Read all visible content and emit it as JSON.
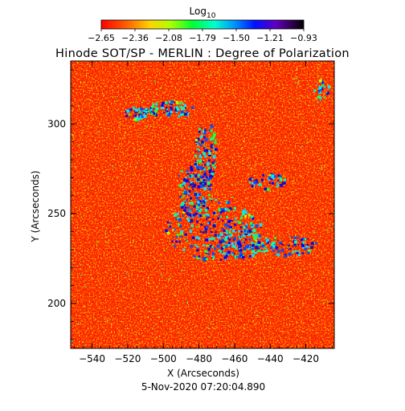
{
  "chart_data": {
    "type": "heatmap",
    "title": "Hinode SOT/SP - MERLIN : Degree of Polarization",
    "xlabel": "X (Arcseconds)",
    "ylabel": "Y (Arcseconds)",
    "footer_timestamp": "5-Nov-2020 07:20:04.890",
    "colorbar": {
      "label_base": "Log",
      "label_sub": "10",
      "ticks": [
        "-2.65",
        "-2.36",
        "-2.08",
        "-1.79",
        "-1.50",
        "-1.21",
        "-0.93"
      ],
      "range": [
        -2.65,
        -0.93
      ],
      "colormap": "rainbow (red to black)"
    },
    "xlim": [
      -552,
      -404
    ],
    "ylim": [
      175,
      335
    ],
    "xticks": [
      {
        "value": -540,
        "label": "−540"
      },
      {
        "value": -520,
        "label": "−520"
      },
      {
        "value": -500,
        "label": "−500"
      },
      {
        "value": -480,
        "label": "−480"
      },
      {
        "value": -460,
        "label": "−460"
      },
      {
        "value": -440,
        "label": "−440"
      },
      {
        "value": -420,
        "label": "−420"
      }
    ],
    "yticks": [
      {
        "value": 200,
        "label": "200"
      },
      {
        "value": 250,
        "label": "250"
      },
      {
        "value": 300,
        "label": "300"
      }
    ],
    "colors": {
      "background": "#ff2a00",
      "low": "#ff0000",
      "mid": "#00ff40",
      "high": "#0000ff"
    }
  }
}
